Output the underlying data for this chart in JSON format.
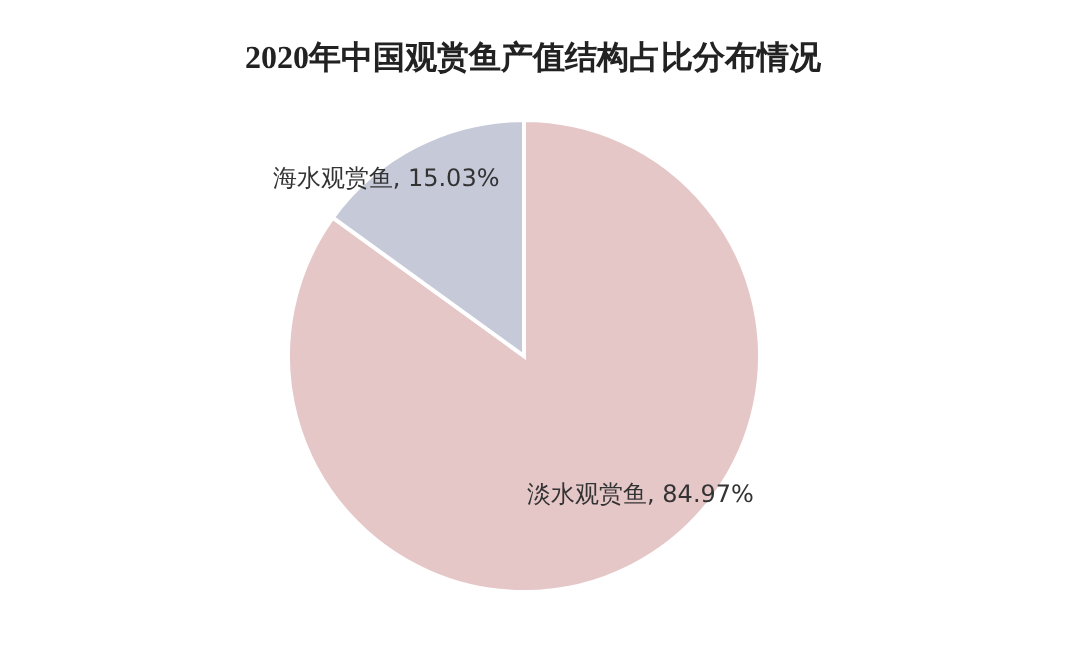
{
  "chart_data": {
    "type": "pie",
    "title": "2020年中国观赏鱼产值结构占比分布情况",
    "categories": [
      "淡水观赏鱼",
      "海水观赏鱼"
    ],
    "values": [
      84.97,
      15.03
    ],
    "colors": [
      "#e6c7c8",
      "#c6cad8"
    ],
    "value_labels": [
      "84.97%",
      "15.03%"
    ]
  }
}
